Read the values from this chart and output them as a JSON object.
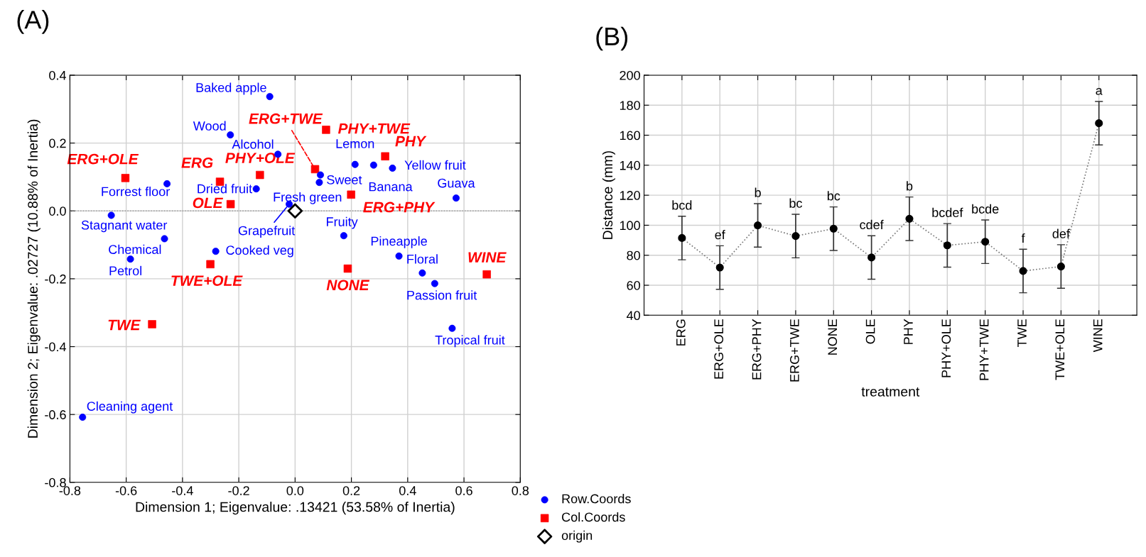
{
  "chart_data": [
    {
      "type": "scatter",
      "title": "(A)",
      "xlabel": "Dimension 1; Eigenvalue: .13421 (53.58% of Inertia)",
      "ylabel": "Dimension 2; Eigenvalue: .02727 (10.88% of Inertia)",
      "xlim": [
        -0.8,
        0.8
      ],
      "xticks": [
        -0.8,
        -0.6,
        -0.4,
        -0.2,
        {
          "value": 0,
          "label": "0.0"
        },
        0.2,
        0.4,
        0.6,
        0.8
      ],
      "ylim": [
        -0.8,
        0.4
      ],
      "yticks": [
        -0.8,
        -0.6,
        -0.4,
        -0.2,
        {
          "value": 0,
          "label": "0.0"
        },
        0.2,
        0.4
      ],
      "grid": true,
      "legend": "bottom right",
      "ref_lines": [
        {
          "axis": "y",
          "value": 0.0,
          "color": "#999999",
          "line_style": "dotted"
        }
      ],
      "series": [
        {
          "name": "Row.Coords",
          "color": "#0000ff",
          "marker": "circle",
          "x": [
            -0.09,
            -0.23,
            -0.061,
            -0.455,
            -0.138,
            0.086,
            -0.021,
            -0.653,
            -0.464,
            -0.585,
            -0.282,
            -0.755,
            0.09,
            0.213,
            0.279,
            0.346,
            0.572,
            0.173,
            0.369,
            0.452,
            0.496,
            0.558
          ],
          "values": [
            0.337,
            0.224,
            0.167,
            0.08,
            0.065,
            0.084,
            0.02,
            -0.013,
            -0.082,
            -0.142,
            -0.119,
            -0.608,
            0.106,
            0.137,
            0.135,
            0.126,
            0.038,
            -0.073,
            -0.133,
            -0.183,
            -0.214,
            -0.346
          ]
        },
        {
          "name": "Col.Coords",
          "color": "#ff0000",
          "marker": "square",
          "x": [
            -0.603,
            -0.267,
            -0.125,
            -0.229,
            -0.301,
            -0.508,
            0.071,
            0.11,
            0.32,
            0.199,
            0.187,
            0.681
          ],
          "values": [
            0.097,
            0.086,
            0.106,
            0.02,
            -0.157,
            -0.334,
            0.123,
            0.239,
            0.161,
            0.048,
            -0.17,
            -0.187
          ]
        },
        {
          "name": "origin",
          "color": "#000000",
          "marker": "diamond",
          "x": [
            0.0
          ],
          "values": [
            0.0
          ]
        }
      ],
      "annotations": [
        {
          "text": "Baked apple",
          "x": -0.09,
          "y": 0.337
        },
        {
          "text": "Wood",
          "x": -0.23,
          "y": 0.224
        },
        {
          "text": "Alcohol",
          "x": -0.061,
          "y": 0.167
        },
        {
          "text": "Forrest floor",
          "x": -0.455,
          "y": 0.08
        },
        {
          "text": "Dried fruit",
          "x": -0.138,
          "y": 0.065
        },
        {
          "text": "Fresh green",
          "x": 0.086,
          "y": 0.084
        },
        {
          "text": "Grapefruit",
          "x": -0.021,
          "y": 0.02
        },
        {
          "text": "Stagnant water",
          "x": -0.653,
          "y": -0.013
        },
        {
          "text": "Chemical",
          "x": -0.464,
          "y": -0.082
        },
        {
          "text": "Petrol",
          "x": -0.585,
          "y": -0.142
        },
        {
          "text": "Cooked veg",
          "x": -0.282,
          "y": -0.119
        },
        {
          "text": "Cleaning agent",
          "x": -0.755,
          "y": -0.608
        },
        {
          "text": "Sweet",
          "x": 0.09,
          "y": 0.106
        },
        {
          "text": "Lemon",
          "x": 0.213,
          "y": 0.137
        },
        {
          "text": "Banana",
          "x": 0.279,
          "y": 0.135
        },
        {
          "text": "Yellow fruit",
          "x": 0.346,
          "y": 0.126
        },
        {
          "text": "Guava",
          "x": 0.572,
          "y": 0.038
        },
        {
          "text": "Fruity",
          "x": 0.173,
          "y": -0.073
        },
        {
          "text": "Pineapple",
          "x": 0.369,
          "y": -0.133
        },
        {
          "text": "Floral",
          "x": 0.452,
          "y": -0.183
        },
        {
          "text": "Passion fruit",
          "x": 0.496,
          "y": -0.214
        },
        {
          "text": "Tropical fruit",
          "x": 0.558,
          "y": -0.346
        },
        {
          "text": "ERG+OLE",
          "x": -0.603,
          "y": 0.097
        },
        {
          "text": "ERG",
          "x": -0.267,
          "y": 0.086
        },
        {
          "text": "PHY+OLE",
          "x": -0.125,
          "y": 0.106
        },
        {
          "text": "OLE",
          "x": -0.229,
          "y": 0.02
        },
        {
          "text": "TWE+OLE",
          "x": -0.301,
          "y": -0.157
        },
        {
          "text": "TWE",
          "x": -0.508,
          "y": -0.334
        },
        {
          "text": "ERG+TWE",
          "x": 0.071,
          "y": 0.123
        },
        {
          "text": "PHY+TWE",
          "x": 0.11,
          "y": 0.239
        },
        {
          "text": "PHY",
          "x": 0.32,
          "y": 0.161
        },
        {
          "text": "ERG+PHY",
          "x": 0.199,
          "y": 0.048
        },
        {
          "text": "NONE",
          "x": 0.187,
          "y": -0.17
        },
        {
          "text": "WINE",
          "x": 0.681,
          "y": -0.187
        }
      ]
    },
    {
      "type": "line",
      "title": "(B)",
      "xlabel": "treatment",
      "ylabel": "Distance (mm)",
      "ylim": [
        40,
        200
      ],
      "yticks": [
        40,
        60,
        80,
        100,
        120,
        140,
        160,
        180,
        200
      ],
      "grid": true,
      "marker": "circle",
      "line_style": "dotted",
      "color": "#000000",
      "categories": [
        "ERG",
        "ERG+OLE",
        "ERG+PHY",
        "ERG+TWE",
        "NONE",
        "OLE",
        "PHY",
        "PHY+OLE",
        "PHY+TWE",
        "TWE",
        "TWE+OLE",
        "WINE"
      ],
      "values": [
        91.5,
        71.8,
        99.9,
        92.8,
        97.7,
        78.5,
        104.3,
        86.6,
        89.0,
        69.5,
        72.5,
        168.0
      ],
      "errors": [
        14.5,
        14.5,
        14.5,
        14.5,
        14.5,
        14.5,
        14.5,
        14.5,
        14.5,
        14.5,
        14.5,
        14.5
      ],
      "annotations": [
        {
          "text": "bcd",
          "x": "ERG",
          "y": 106.0
        },
        {
          "text": "ef",
          "x": "ERG+OLE",
          "y": 86.3
        },
        {
          "text": "b",
          "x": "ERG+PHY",
          "y": 114.4
        },
        {
          "text": "bc",
          "x": "ERG+TWE",
          "y": 107.3
        },
        {
          "text": "bc",
          "x": "NONE",
          "y": 112.2
        },
        {
          "text": "cdef",
          "x": "OLE",
          "y": 93.0
        },
        {
          "text": "b",
          "x": "PHY",
          "y": 118.8
        },
        {
          "text": "bcdef",
          "x": "PHY+OLE",
          "y": 101.1
        },
        {
          "text": "bcde",
          "x": "PHY+TWE",
          "y": 103.5
        },
        {
          "text": "f",
          "x": "TWE",
          "y": 84.0
        },
        {
          "text": "def",
          "x": "TWE+OLE",
          "y": 87.0
        },
        {
          "text": "a",
          "x": "WINE",
          "y": 182.5
        }
      ]
    }
  ]
}
